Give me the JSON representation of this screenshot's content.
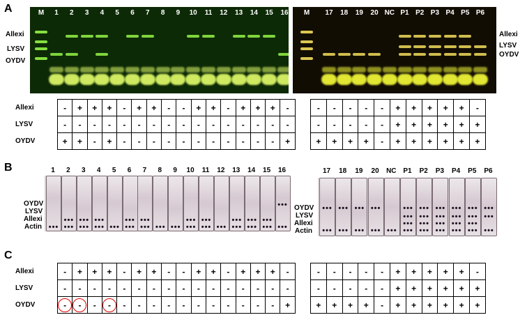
{
  "panels": {
    "a": "A",
    "b": "B",
    "c": "C"
  },
  "virus_labels": {
    "allexi": "Allexi",
    "lysv": "LYSV",
    "oydv": "OYDV",
    "actin": "Actin"
  },
  "gel_left": {
    "marker": "M",
    "lanes": [
      "1",
      "2",
      "3",
      "4",
      "5",
      "6",
      "7",
      "8",
      "9",
      "10",
      "11",
      "12",
      "13",
      "14",
      "15",
      "16"
    ],
    "band_colors": {
      "background": "#0d2a06",
      "band": "#9cff4a",
      "primer": "#e4ff6a"
    }
  },
  "gel_right": {
    "marker": "M",
    "lanes": [
      "17",
      "18",
      "19",
      "20",
      "NC",
      "P1",
      "P2",
      "P3",
      "P4",
      "P5",
      "P6"
    ],
    "band_colors": {
      "background": "#120d02",
      "band": "#ffe860",
      "primer": "#f8ff38"
    }
  },
  "table_a_left": {
    "rows": [
      {
        "label": "Allexi",
        "cells": [
          "-",
          "+",
          "+",
          "+",
          "-",
          "+",
          "+",
          "-",
          "-",
          "+",
          "+",
          "-",
          "+",
          "+",
          "+",
          "-"
        ]
      },
      {
        "label": "LYSV",
        "cells": [
          "-",
          "-",
          "-",
          "-",
          "-",
          "-",
          "-",
          "-",
          "-",
          "-",
          "-",
          "-",
          "-",
          "-",
          "-",
          "-"
        ]
      },
      {
        "label": "OYDV",
        "cells": [
          "+",
          "+",
          "-",
          "+",
          "-",
          "-",
          "-",
          "-",
          "-",
          "-",
          "-",
          "-",
          "-",
          "-",
          "-",
          "+"
        ]
      }
    ]
  },
  "table_a_right": {
    "rows": [
      {
        "cells": [
          "-",
          "-",
          "-",
          "-",
          "-",
          "+",
          "+",
          "+",
          "+",
          "+",
          "-"
        ]
      },
      {
        "cells": [
          "-",
          "-",
          "-",
          "-",
          "-",
          "+",
          "+",
          "+",
          "+",
          "+",
          "+"
        ]
      },
      {
        "cells": [
          "+",
          "+",
          "+",
          "+",
          "-",
          "+",
          "+",
          "+",
          "+",
          "+",
          "+"
        ]
      }
    ]
  },
  "strips_left": {
    "labels": [
      "1",
      "2",
      "3",
      "4",
      "5",
      "6",
      "7",
      "8",
      "9",
      "10",
      "11",
      "12",
      "13",
      "14",
      "15",
      "16"
    ]
  },
  "strips_right": {
    "labels": [
      "17",
      "18",
      "19",
      "20",
      "NC",
      "P1",
      "P2",
      "P3",
      "P4",
      "P5",
      "P6"
    ]
  },
  "table_c_left": {
    "rows": [
      {
        "label": "Allexi",
        "cells": [
          "-",
          "+",
          "+",
          "+",
          "-",
          "+",
          "+",
          "-",
          "-",
          "+",
          "+",
          "-",
          "+",
          "+",
          "+",
          "-"
        ]
      },
      {
        "label": "LYSV",
        "cells": [
          "-",
          "-",
          "-",
          "-",
          "-",
          "-",
          "-",
          "-",
          "-",
          "-",
          "-",
          "-",
          "-",
          "-",
          "-",
          "-"
        ]
      },
      {
        "label": "OYDV",
        "cells": [
          "-",
          "-",
          "-",
          "-",
          "-",
          "-",
          "-",
          "-",
          "-",
          "-",
          "-",
          "-",
          "-",
          "-",
          "-",
          "+"
        ]
      }
    ]
  },
  "table_c_right": {
    "rows": [
      {
        "cells": [
          "-",
          "-",
          "-",
          "-",
          "-",
          "+",
          "+",
          "+",
          "+",
          "+",
          "-"
        ]
      },
      {
        "cells": [
          "-",
          "-",
          "-",
          "-",
          "-",
          "+",
          "+",
          "+",
          "+",
          "+",
          "+"
        ]
      },
      {
        "cells": [
          "+",
          "+",
          "+",
          "+",
          "-",
          "+",
          "+",
          "+",
          "+",
          "+",
          "+"
        ]
      }
    ]
  },
  "circled_cells": [
    0,
    1,
    3
  ],
  "circle_color": "#e00000"
}
